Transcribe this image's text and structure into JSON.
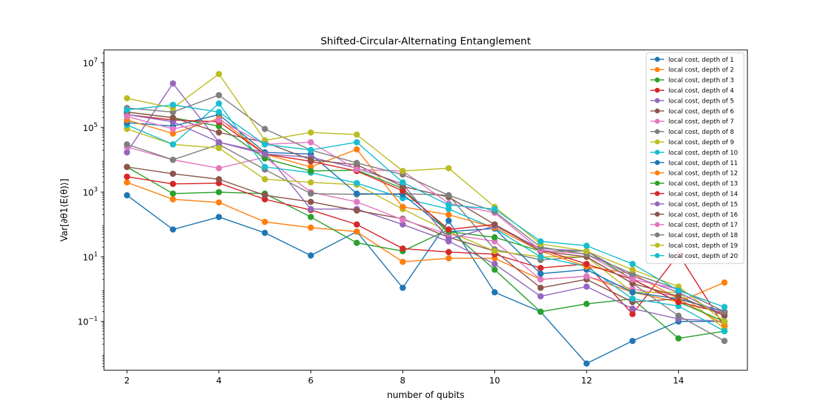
{
  "chart_data": {
    "type": "line",
    "title": "Shifted-Circular-Alternating Entanglement",
    "xlabel": "number of qubits",
    "ylabel": "Var[∂θ1⟨E(θ)⟩]",
    "xlim": [
      1.5,
      15.5
    ],
    "ylim": [
      0.0031,
      25000000
    ],
    "yscale": "log",
    "grid": false,
    "legend_position": "top-right",
    "x": [
      2,
      3,
      4,
      5,
      6,
      7,
      8,
      9,
      10,
      11,
      12,
      13,
      14,
      15
    ],
    "x_ticks": [
      2,
      4,
      6,
      8,
      10,
      12,
      14
    ],
    "x_tick_labels": [
      "2",
      "4",
      "6",
      "8",
      "10",
      "12",
      "14"
    ],
    "y_ticks": [
      0.1,
      10,
      1000,
      100000,
      10000000
    ],
    "y_tick_labels": [
      "10",
      "10",
      "10",
      "10",
      "10"
    ],
    "y_tick_exponents": [
      "−1",
      "1",
      "3",
      "5",
      "7"
    ],
    "series": [
      {
        "name": "local cost, depth of 1",
        "color": "#1f77b4",
        "values": [
          800,
          70,
          170,
          55,
          11,
          60,
          1.1,
          130,
          0.8,
          0.2,
          0.005,
          0.025,
          0.1,
          0.1
        ]
      },
      {
        "name": "local cost, depth of 2",
        "color": "#ff7f0e",
        "values": [
          2000,
          600,
          480,
          120,
          80,
          60,
          7,
          9,
          9,
          2,
          2.5,
          0.8,
          0.4,
          1.6
        ]
      },
      {
        "name": "local cost, depth of 3",
        "color": "#2ca02c",
        "values": [
          6000,
          900,
          1000,
          900,
          170,
          27,
          15,
          70,
          4,
          0.2,
          0.35,
          0.5,
          0.03,
          0.05
        ]
      },
      {
        "name": "local cost, depth of 4",
        "color": "#d62728",
        "values": [
          3000,
          1800,
          1900,
          600,
          280,
          100,
          18,
          14,
          12,
          4.5,
          6,
          0.17,
          12,
          0.07
        ]
      },
      {
        "name": "local cost, depth of 5",
        "color": "#9467bd",
        "values": [
          17000,
          2300000,
          35000,
          17000,
          300,
          300,
          100,
          30,
          6,
          0.6,
          1.2,
          0.25,
          0.12,
          0.1
        ]
      },
      {
        "name": "local cost, depth of 6",
        "color": "#8c564b",
        "values": [
          6000,
          3700,
          2500,
          800,
          500,
          270,
          150,
          40,
          15,
          1.1,
          2,
          0.4,
          0.5,
          0.2
        ]
      },
      {
        "name": "local cost, depth of 7",
        "color": "#e377c2",
        "values": [
          25000,
          10000,
          5500,
          12000,
          1000,
          500,
          140,
          50,
          30,
          2,
          2.5,
          1,
          0.6,
          0.15
        ]
      },
      {
        "name": "local cost, depth of 8",
        "color": "#7f7f7f",
        "values": [
          30000,
          10000,
          30000,
          5000,
          900,
          850,
          900,
          800,
          17,
          8,
          10,
          1.5,
          0.15,
          0.025
        ]
      },
      {
        "name": "local cost, depth of 9",
        "color": "#bcbd22",
        "values": [
          90000,
          30000,
          23000,
          2500,
          2000,
          1700,
          300,
          60,
          15,
          10,
          10,
          0.8,
          0.8,
          0.06
        ]
      },
      {
        "name": "local cost, depth of 10",
        "color": "#17becf",
        "values": [
          120000,
          30000,
          550000,
          6000,
          4000,
          1900,
          650,
          300,
          75,
          10,
          5,
          0.5,
          0.3,
          0.05
        ]
      },
      {
        "name": "local cost, depth of 11",
        "color": "#1f77b4",
        "values": [
          140000,
          110000,
          250000,
          17000,
          15000,
          900,
          850,
          60,
          75,
          3,
          4,
          0.8,
          0.5,
          0.2
        ]
      },
      {
        "name": "local cost, depth of 12",
        "color": "#ff7f0e",
        "values": [
          170000,
          65000,
          190000,
          15000,
          6000,
          21000,
          350,
          200,
          80,
          15,
          5,
          3,
          0.5,
          0.08
        ]
      },
      {
        "name": "local cost, depth of 13",
        "color": "#2ca02c",
        "values": [
          300000,
          200000,
          110000,
          11000,
          4500,
          4800,
          1300,
          60,
          40,
          15,
          15,
          2,
          0.4,
          0.1
        ]
      },
      {
        "name": "local cost, depth of 14",
        "color": "#d62728",
        "values": [
          250000,
          170000,
          150000,
          15000,
          9000,
          4500,
          1100,
          70,
          100,
          17,
          6,
          2,
          0.4,
          0.18
        ]
      },
      {
        "name": "local cost, depth of 15",
        "color": "#9467bd",
        "values": [
          250000,
          150000,
          35000,
          15000,
          12000,
          5500,
          1800,
          35,
          90,
          18,
          15,
          2.5,
          0.8,
          0.15
        ]
      },
      {
        "name": "local cost, depth of 16",
        "color": "#8c564b",
        "values": [
          300000,
          200000,
          70000,
          35000,
          10000,
          7000,
          1500,
          700,
          100,
          15,
          10,
          1.5,
          0.6,
          0.15
        ]
      },
      {
        "name": "local cost, depth of 17",
        "color": "#e377c2",
        "values": [
          220000,
          90000,
          170000,
          30000,
          35000,
          5000,
          4500,
          450,
          230,
          16,
          12,
          2,
          1,
          0.2
        ]
      },
      {
        "name": "local cost, depth of 18",
        "color": "#7f7f7f",
        "values": [
          400000,
          300000,
          1000000,
          90000,
          20000,
          8000,
          3500,
          800,
          250,
          20,
          12,
          3,
          1,
          0.2
        ]
      },
      {
        "name": "local cost, depth of 19",
        "color": "#bcbd22",
        "values": [
          800000,
          400000,
          4500000,
          40000,
          70000,
          60000,
          4500,
          5500,
          350,
          25,
          15,
          4,
          1.2,
          0.1
        ]
      },
      {
        "name": "local cost, depth of 20",
        "color": "#17becf",
        "values": [
          350000,
          500000,
          300000,
          30000,
          20000,
          35000,
          2000,
          400,
          300,
          30,
          22,
          6,
          0.9,
          0.28
        ]
      }
    ]
  }
}
